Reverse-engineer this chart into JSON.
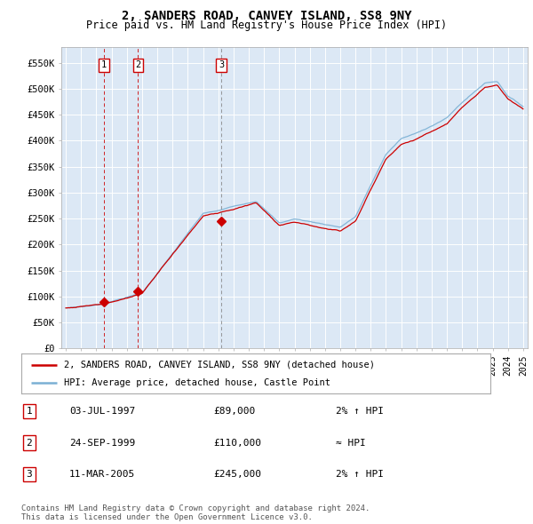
{
  "title": "2, SANDERS ROAD, CANVEY ISLAND, SS8 9NY",
  "subtitle": "Price paid vs. HM Land Registry's House Price Index (HPI)",
  "fig_bg_color": "#ffffff",
  "plot_bg_color": "#dce8f5",
  "ylim": [
    0,
    580000
  ],
  "yticks": [
    0,
    50000,
    100000,
    150000,
    200000,
    250000,
    300000,
    350000,
    400000,
    450000,
    500000,
    550000
  ],
  "ytick_labels": [
    "£0",
    "£50K",
    "£100K",
    "£150K",
    "£200K",
    "£250K",
    "£300K",
    "£350K",
    "£400K",
    "£450K",
    "£500K",
    "£550K"
  ],
  "xlim_left": 1994.7,
  "xlim_right": 2025.3,
  "sales": [
    {
      "date_num": 1997.51,
      "price": 89000,
      "label": "1",
      "vline_color": "#cc0000",
      "vline_style": "--"
    },
    {
      "date_num": 1999.73,
      "price": 110000,
      "label": "2",
      "vline_color": "#cc0000",
      "vline_style": "--"
    },
    {
      "date_num": 2005.19,
      "price": 245000,
      "label": "3",
      "vline_color": "#888888",
      "vline_style": "--"
    }
  ],
  "sale_line_color": "#cc0000",
  "hpi_line_color": "#7ab0d4",
  "legend_label_red": "2, SANDERS ROAD, CANVEY ISLAND, SS8 9NY (detached house)",
  "legend_label_blue": "HPI: Average price, detached house, Castle Point",
  "table_entries": [
    {
      "num": "1",
      "date": "03-JUL-1997",
      "price": "£89,000",
      "rel": "2% ↑ HPI"
    },
    {
      "num": "2",
      "date": "24-SEP-1999",
      "price": "£110,000",
      "rel": "≈ HPI"
    },
    {
      "num": "3",
      "date": "11-MAR-2005",
      "price": "£245,000",
      "rel": "2% ↑ HPI"
    }
  ],
  "footnote1": "Contains HM Land Registry data © Crown copyright and database right 2024.",
  "footnote2": "This data is licensed under the Open Government Licence v3.0."
}
